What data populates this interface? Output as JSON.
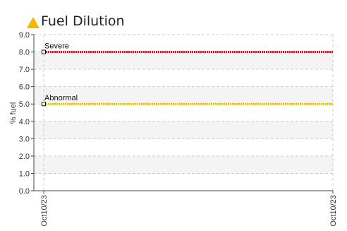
{
  "title": "Fuel Dilution",
  "icon": "warning-triangle-icon",
  "colors": {
    "warning_icon": "#f5b800",
    "severe": "#e8111b",
    "abnormal": "#e6c200",
    "grid": "#cccccc",
    "band": "#f4f4f4"
  },
  "chart_data": {
    "type": "line",
    "title": "Fuel Dilution",
    "ylabel": "% fuel",
    "xlabel": "",
    "ylim": [
      0,
      9
    ],
    "yticks": [
      0,
      1,
      2,
      3,
      4,
      5,
      6,
      7,
      8,
      9
    ],
    "ytick_labels": [
      "0.0",
      "1.0",
      "2.0",
      "3.0",
      "4.0",
      "5.0",
      "6.0",
      "7.0",
      "8.0",
      "9.0"
    ],
    "x": [
      "Oct10/23",
      "Oct10/23"
    ],
    "grid": true,
    "series": [
      {
        "name": "Severe",
        "values": [
          8.0,
          8.0
        ],
        "color": "#e8111b"
      },
      {
        "name": "Abnormal",
        "values": [
          5.0,
          5.0
        ],
        "color": "#e6c200"
      }
    ]
  }
}
